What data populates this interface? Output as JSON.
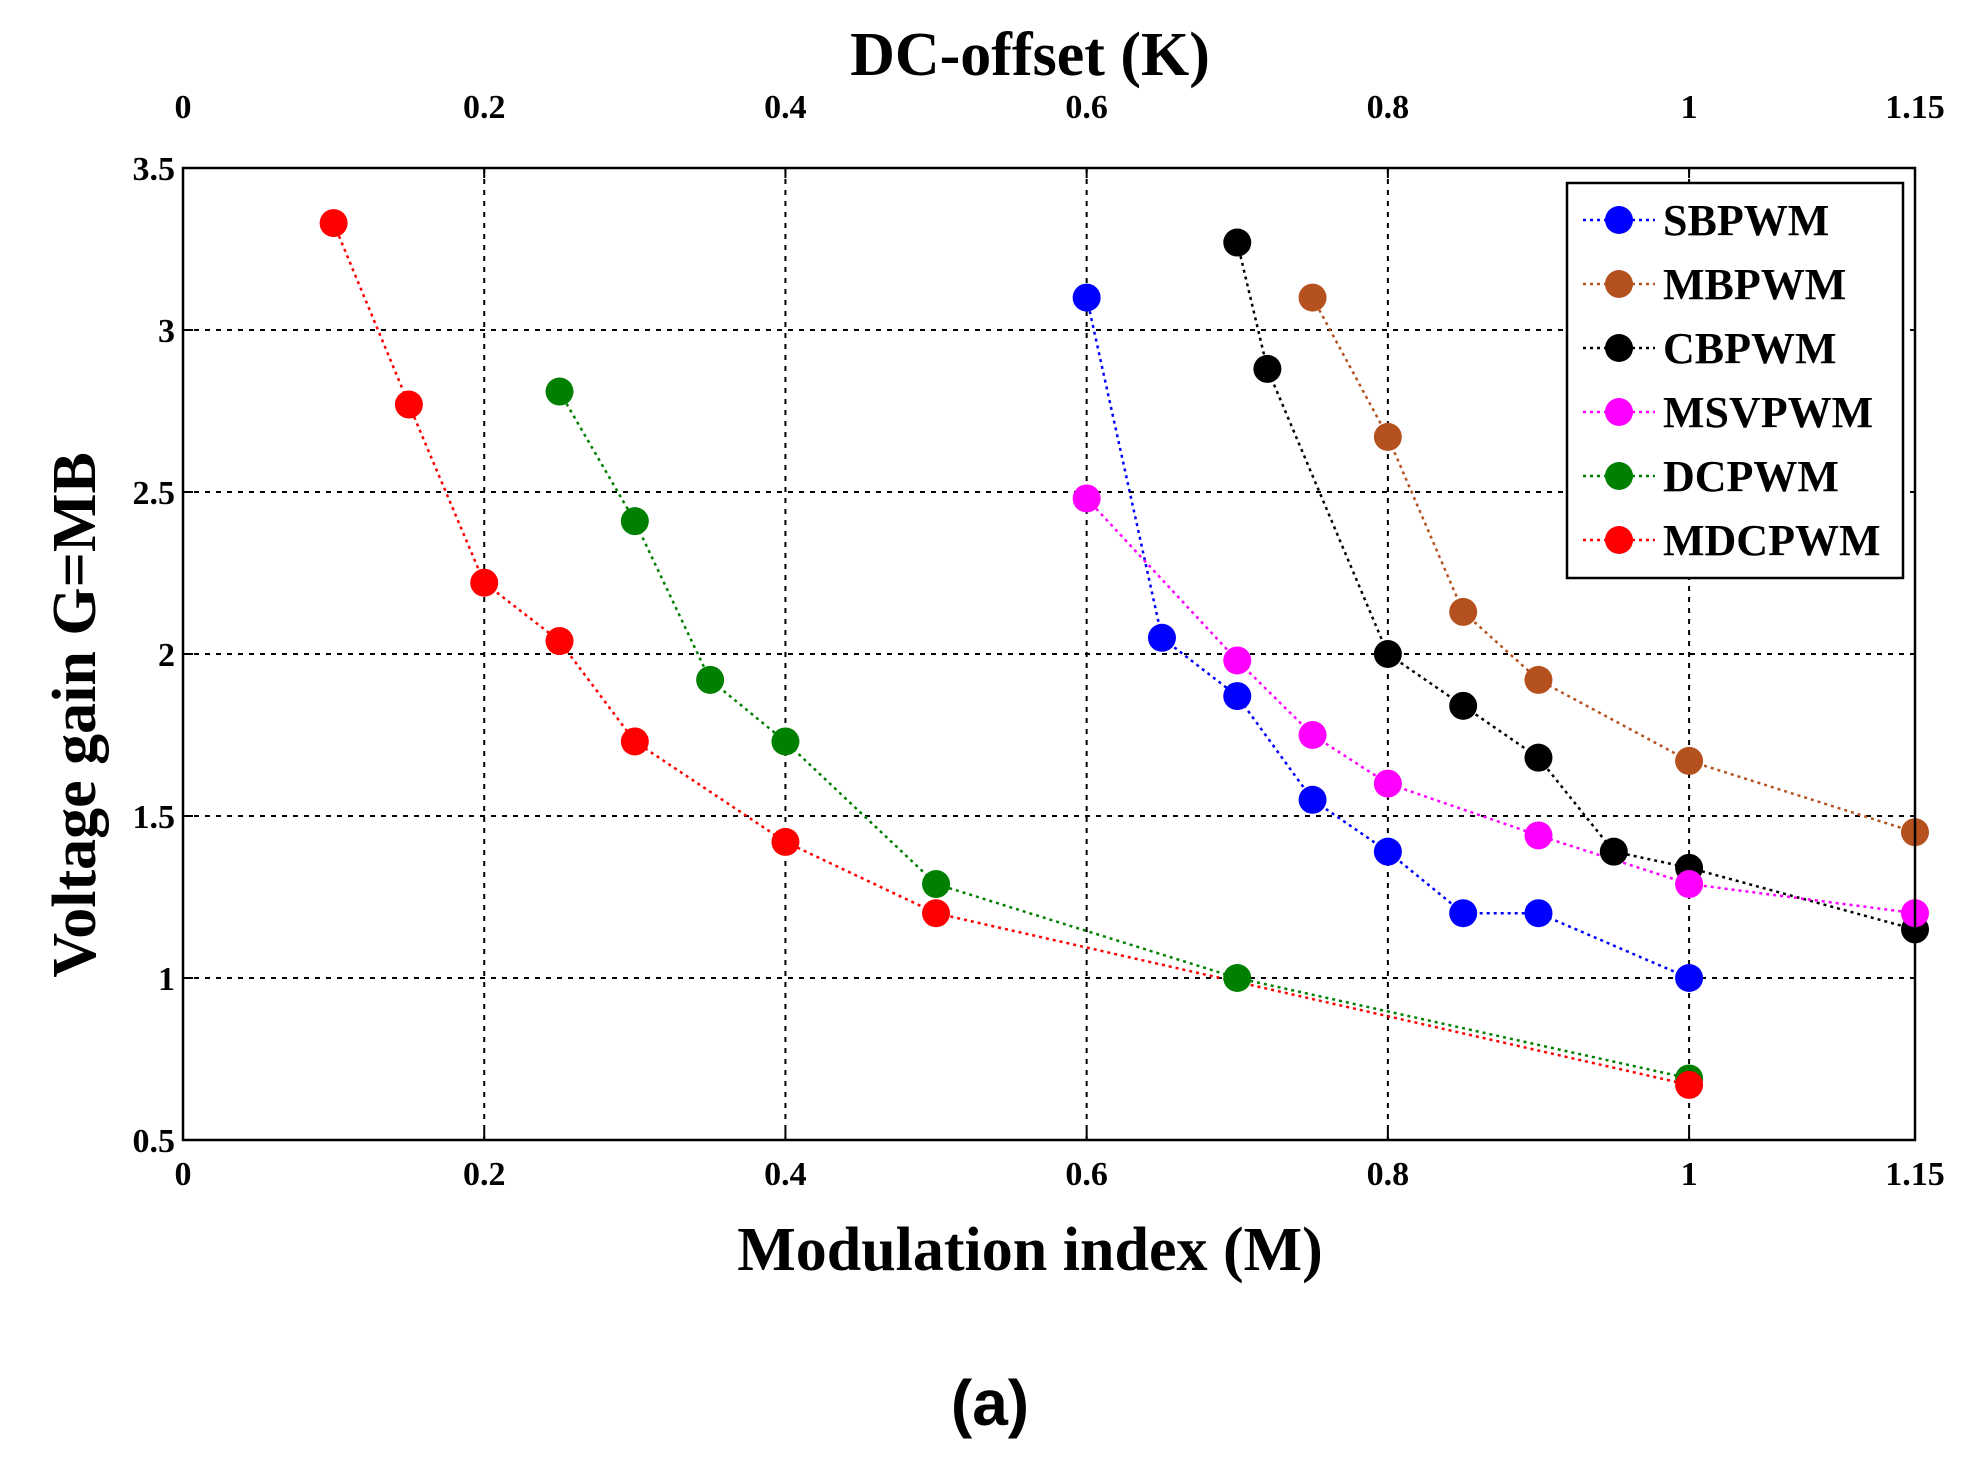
{
  "chart_data": {
    "type": "line",
    "title": "DC-offset (K)",
    "xlabel": "Modulation index (M)",
    "ylabel": "Voltage gain G=MB",
    "caption": "(a)",
    "xlim": [
      0,
      1.15
    ],
    "ylim": [
      0.5,
      3.5
    ],
    "x_ticks": [
      0,
      0.2,
      0.4,
      0.6,
      0.8,
      1,
      1.15
    ],
    "x_tick_labels": [
      "0",
      "0.2",
      "0.4",
      "0.6",
      "0.8",
      "1",
      "1.15"
    ],
    "top_ticks": [
      0,
      0.2,
      0.4,
      0.6,
      0.8,
      1,
      1.15
    ],
    "top_tick_labels": [
      "0",
      "0.2",
      "0.4",
      "0.6",
      "0.8",
      "1",
      "1.15"
    ],
    "y_ticks": [
      0.5,
      1,
      1.5,
      2,
      2.5,
      3,
      3.5
    ],
    "y_tick_labels": [
      "0.5",
      "1",
      "1.5",
      "2",
      "2.5",
      "3",
      "3.5"
    ],
    "grid": true,
    "legend_position": "top-right",
    "series": [
      {
        "name": "SBPWM",
        "color": "#0000ff",
        "x": [
          0.6,
          0.65,
          0.7,
          0.75,
          0.8,
          0.85,
          0.9,
          1.0
        ],
        "y": [
          3.1,
          2.05,
          1.87,
          1.55,
          1.39,
          1.2,
          1.2,
          1.0
        ]
      },
      {
        "name": "MBPWM",
        "color": "#b5511f",
        "x": [
          0.75,
          0.8,
          0.85,
          0.9,
          1.0,
          1.15
        ],
        "y": [
          3.1,
          2.67,
          2.13,
          1.92,
          1.67,
          1.45
        ]
      },
      {
        "name": "CBPWM",
        "color": "#000000",
        "x": [
          0.7,
          0.72,
          0.8,
          0.85,
          0.9,
          0.95,
          1.0,
          1.15
        ],
        "y": [
          3.27,
          2.88,
          2.0,
          1.84,
          1.68,
          1.39,
          1.34,
          1.15
        ]
      },
      {
        "name": "MSVPWM",
        "color": "#ff00ff",
        "x": [
          0.6,
          0.7,
          0.75,
          0.8,
          0.9,
          1.0,
          1.15
        ],
        "y": [
          2.48,
          1.98,
          1.75,
          1.6,
          1.44,
          1.29,
          1.2
        ]
      },
      {
        "name": "DCPWM",
        "color": "#008000",
        "x": [
          0.25,
          0.3,
          0.35,
          0.4,
          0.5,
          0.7,
          1.0
        ],
        "y": [
          2.81,
          2.41,
          1.92,
          1.73,
          1.29,
          1.0,
          0.69
        ]
      },
      {
        "name": "MDCPWM",
        "color": "#ff0000",
        "x": [
          0.1,
          0.15,
          0.2,
          0.25,
          0.3,
          0.4,
          0.5,
          1.0
        ],
        "y": [
          3.33,
          2.77,
          2.22,
          2.04,
          1.73,
          1.42,
          1.2,
          0.67
        ]
      }
    ]
  }
}
